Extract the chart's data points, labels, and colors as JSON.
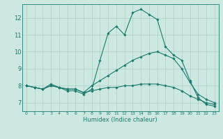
{
  "xlabel": "Humidex (Indice chaleur)",
  "bg_color": "#cce8e0",
  "line_color": "#1a7a6e",
  "grid_color": "#aacfc8",
  "x": [
    0,
    1,
    2,
    3,
    4,
    5,
    6,
    7,
    8,
    9,
    10,
    11,
    12,
    13,
    14,
    15,
    16,
    17,
    18,
    19,
    20,
    21,
    22,
    23
  ],
  "line_max": [
    8.0,
    7.9,
    7.8,
    8.1,
    7.9,
    7.7,
    7.7,
    7.5,
    7.8,
    9.5,
    11.1,
    11.5,
    11.0,
    12.3,
    12.5,
    12.2,
    11.9,
    10.3,
    9.8,
    9.5,
    8.3,
    7.3,
    6.9,
    6.8
  ],
  "line_avg": [
    8.0,
    7.9,
    7.8,
    8.0,
    7.9,
    7.8,
    7.8,
    7.6,
    8.0,
    8.3,
    8.6,
    8.9,
    9.2,
    9.5,
    9.7,
    9.9,
    10.0,
    9.8,
    9.6,
    9.0,
    8.2,
    7.5,
    7.2,
    7.0
  ],
  "line_min": [
    8.0,
    7.9,
    7.8,
    8.0,
    7.9,
    7.8,
    7.8,
    7.6,
    7.7,
    7.8,
    7.9,
    7.9,
    8.0,
    8.0,
    8.1,
    8.1,
    8.1,
    8.0,
    7.9,
    7.7,
    7.4,
    7.2,
    7.0,
    6.9
  ],
  "ylim": [
    6.5,
    12.8
  ],
  "yticks": [
    7,
    8,
    9,
    10,
    11,
    12
  ],
  "marker": "D",
  "marker_size": 1.8,
  "line_width": 0.8,
  "xlabel_fontsize": 6.0,
  "xtick_fontsize": 4.5,
  "ytick_fontsize": 6.0
}
